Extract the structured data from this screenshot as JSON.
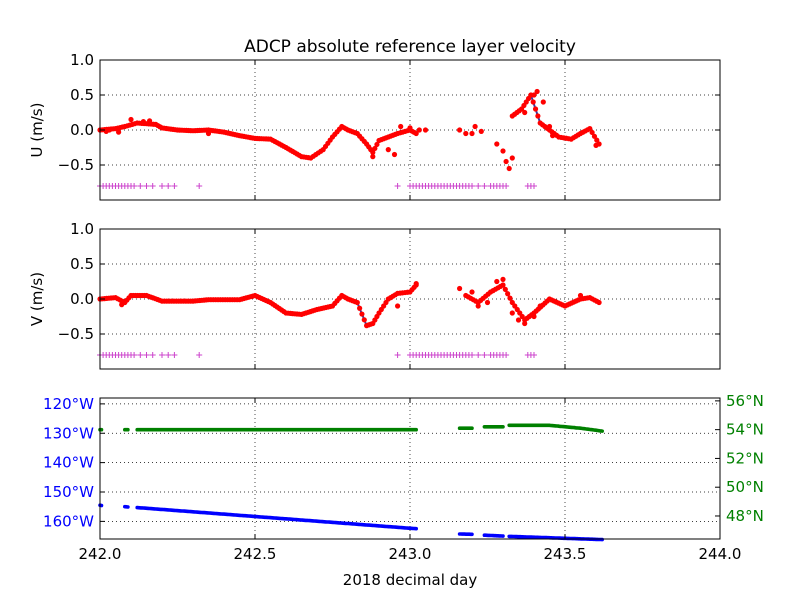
{
  "chart_data": [
    {
      "type": "scatter",
      "title": "ADCP absolute reference layer velocity",
      "ylabel": "U (m/s)",
      "xlim": [
        242.0,
        244.0
      ],
      "ylim": [
        -1.0,
        1.0
      ],
      "xticks": [
        242.0,
        242.5,
        243.0,
        243.5,
        244.0
      ],
      "yticks": [
        -0.5,
        0.0,
        0.5,
        1.0
      ],
      "ytick_labels": [
        "−0.5",
        "0.0",
        "0.5",
        "1.0"
      ],
      "grid": true,
      "colors": {
        "points": "#ff0000",
        "line": "#3a3aa0",
        "flags": "#cc44cc"
      },
      "flag_y": -0.8,
      "curve": [
        [
          242.0,
          0.0
        ],
        [
          242.05,
          0.02
        ],
        [
          242.08,
          0.05
        ],
        [
          242.12,
          0.1
        ],
        [
          242.18,
          0.08
        ],
        [
          242.2,
          0.03
        ],
        [
          242.25,
          0.0
        ],
        [
          242.3,
          -0.01
        ],
        [
          242.35,
          0.0
        ],
        [
          242.4,
          -0.03
        ],
        [
          242.45,
          -0.08
        ],
        [
          242.5,
          -0.12
        ],
        [
          242.55,
          -0.13
        ],
        [
          242.6,
          -0.25
        ],
        [
          242.65,
          -0.38
        ],
        [
          242.68,
          -0.4
        ],
        [
          242.72,
          -0.28
        ],
        [
          242.75,
          -0.1
        ],
        [
          242.78,
          0.05
        ],
        [
          242.8,
          0.0
        ],
        [
          242.83,
          -0.05
        ],
        [
          242.86,
          -0.2
        ],
        [
          242.88,
          -0.32
        ],
        [
          242.9,
          -0.15
        ],
        [
          242.93,
          -0.1
        ],
        [
          242.96,
          -0.05
        ],
        [
          243.0,
          0.0
        ],
        [
          243.02,
          -0.05
        ]
      ],
      "curve2": [
        [
          243.33,
          0.2
        ],
        [
          243.36,
          0.3
        ],
        [
          243.39,
          0.5
        ],
        [
          243.42,
          0.1
        ],
        [
          243.45,
          0.0
        ],
        [
          243.48,
          -0.1
        ],
        [
          243.52,
          -0.13
        ],
        [
          243.55,
          -0.05
        ],
        [
          243.58,
          0.02
        ],
        [
          243.61,
          -0.2
        ]
      ],
      "extra_points": [
        [
          242.02,
          -0.02
        ],
        [
          242.03,
          0.0
        ],
        [
          242.06,
          -0.03
        ],
        [
          242.1,
          0.15
        ],
        [
          242.14,
          0.12
        ],
        [
          242.16,
          0.13
        ],
        [
          242.35,
          -0.05
        ],
        [
          242.88,
          -0.38
        ],
        [
          242.93,
          -0.28
        ],
        [
          242.95,
          -0.35
        ],
        [
          242.97,
          0.05
        ],
        [
          243.0,
          0.03
        ],
        [
          243.03,
          0.0
        ],
        [
          243.05,
          0.0
        ],
        [
          243.16,
          0.0
        ],
        [
          243.18,
          -0.05
        ],
        [
          243.2,
          -0.05
        ],
        [
          243.21,
          0.05
        ],
        [
          243.23,
          -0.02
        ],
        [
          243.28,
          -0.2
        ],
        [
          243.3,
          -0.3
        ],
        [
          243.31,
          -0.45
        ],
        [
          243.32,
          -0.55
        ],
        [
          243.33,
          -0.4
        ],
        [
          243.37,
          0.25
        ],
        [
          243.4,
          0.5
        ],
        [
          243.41,
          0.55
        ],
        [
          243.43,
          0.4
        ],
        [
          243.45,
          0.05
        ],
        [
          243.46,
          -0.08
        ],
        [
          243.6,
          -0.22
        ]
      ],
      "flags": [
        242.0,
        242.01,
        242.02,
        242.03,
        242.04,
        242.05,
        242.06,
        242.07,
        242.08,
        242.09,
        242.1,
        242.11,
        242.13,
        242.15,
        242.17,
        242.2,
        242.22,
        242.24,
        242.32,
        242.96,
        243.0,
        243.01,
        243.02,
        243.03,
        243.04,
        243.05,
        243.06,
        243.07,
        243.08,
        243.09,
        243.1,
        243.11,
        243.12,
        243.13,
        243.14,
        243.15,
        243.16,
        243.17,
        243.18,
        243.19,
        243.2,
        243.22,
        243.24,
        243.26,
        243.27,
        243.28,
        243.29,
        243.3,
        243.31,
        243.38,
        243.39,
        243.4
      ]
    },
    {
      "type": "scatter",
      "ylabel": "V (m/s)",
      "xlim": [
        242.0,
        244.0
      ],
      "ylim": [
        -1.0,
        1.0
      ],
      "xticks": [
        242.0,
        242.5,
        243.0,
        243.5,
        244.0
      ],
      "yticks": [
        -0.5,
        0.0,
        0.5,
        1.0
      ],
      "ytick_labels": [
        "−0.5",
        "0.0",
        "0.5",
        "1.0"
      ],
      "grid": true,
      "colors": {
        "points": "#ff0000",
        "line": "#3a3aa0",
        "flags": "#cc44cc"
      },
      "flag_y": -0.8,
      "curve": [
        [
          242.0,
          0.0
        ],
        [
          242.05,
          0.02
        ],
        [
          242.08,
          -0.05
        ],
        [
          242.1,
          0.05
        ],
        [
          242.15,
          0.05
        ],
        [
          242.2,
          -0.03
        ],
        [
          242.3,
          -0.03
        ],
        [
          242.35,
          -0.01
        ],
        [
          242.45,
          -0.01
        ],
        [
          242.5,
          0.05
        ],
        [
          242.55,
          -0.05
        ],
        [
          242.6,
          -0.2
        ],
        [
          242.65,
          -0.22
        ],
        [
          242.7,
          -0.15
        ],
        [
          242.75,
          -0.1
        ],
        [
          242.78,
          0.05
        ],
        [
          242.8,
          0.0
        ],
        [
          242.83,
          -0.05
        ],
        [
          242.86,
          -0.38
        ],
        [
          242.88,
          -0.35
        ],
        [
          242.9,
          -0.2
        ],
        [
          242.93,
          0.0
        ],
        [
          242.96,
          0.08
        ],
        [
          243.0,
          0.1
        ],
        [
          243.02,
          0.2
        ]
      ],
      "curve2": [
        [
          243.18,
          0.05
        ],
        [
          243.22,
          -0.05
        ],
        [
          243.26,
          0.1
        ],
        [
          243.3,
          0.2
        ],
        [
          243.33,
          -0.05
        ],
        [
          243.37,
          -0.3
        ],
        [
          243.4,
          -0.2
        ],
        [
          243.45,
          0.0
        ],
        [
          243.5,
          -0.1
        ],
        [
          243.55,
          0.0
        ],
        [
          243.58,
          0.02
        ],
        [
          243.61,
          -0.05
        ]
      ],
      "extra_points": [
        [
          242.07,
          -0.08
        ],
        [
          242.96,
          -0.1
        ],
        [
          243.02,
          0.22
        ],
        [
          243.16,
          0.15
        ],
        [
          243.2,
          0.1
        ],
        [
          243.22,
          -0.1
        ],
        [
          243.25,
          -0.05
        ],
        [
          243.28,
          0.25
        ],
        [
          243.3,
          0.28
        ],
        [
          243.33,
          -0.2
        ],
        [
          243.35,
          -0.3
        ],
        [
          243.37,
          -0.35
        ],
        [
          243.4,
          -0.25
        ],
        [
          243.42,
          -0.1
        ],
        [
          243.55,
          0.05
        ]
      ],
      "flags": [
        242.0,
        242.01,
        242.02,
        242.03,
        242.04,
        242.05,
        242.06,
        242.07,
        242.08,
        242.09,
        242.1,
        242.11,
        242.13,
        242.15,
        242.17,
        242.2,
        242.22,
        242.24,
        242.32,
        242.96,
        243.0,
        243.01,
        243.02,
        243.03,
        243.04,
        243.05,
        243.06,
        243.07,
        243.08,
        243.09,
        243.1,
        243.11,
        243.12,
        243.13,
        243.14,
        243.15,
        243.16,
        243.17,
        243.18,
        243.19,
        243.2,
        243.22,
        243.24,
        243.26,
        243.27,
        243.28,
        243.29,
        243.3,
        243.31,
        243.38,
        243.39,
        243.4
      ]
    },
    {
      "type": "scatter",
      "xlabel": "2018 decimal day",
      "xlim": [
        242.0,
        244.0
      ],
      "xticks": [
        242.0,
        242.5,
        243.0,
        243.5,
        244.0
      ],
      "xtick_labels": [
        "242.0",
        "242.5",
        "243.0",
        "243.5",
        "244.0"
      ],
      "grid": true,
      "left_axis": {
        "quantity": "longitude",
        "ylim": [
          -166,
          -118
        ],
        "ticks": [
          -120,
          -130,
          -140,
          -150,
          -160
        ],
        "tick_labels": [
          "120°W",
          "130°W",
          "140°W",
          "150°W",
          "160°W"
        ],
        "color": "#0000ff"
      },
      "right_axis": {
        "quantity": "latitude",
        "ylim": [
          46.4,
          56.2
        ],
        "ticks": [
          56,
          54,
          52,
          50,
          48
        ],
        "tick_labels": [
          "56°N",
          "54°N",
          "52°N",
          "50°N",
          "48°N"
        ],
        "color": "#008000"
      },
      "longitude_segments": [
        [
          [
            242.0,
            -154.5
          ],
          [
            242.005,
            -154.6
          ]
        ],
        [
          [
            242.08,
            -155.0
          ],
          [
            242.09,
            -155.1
          ]
        ],
        [
          [
            242.12,
            -155.3
          ],
          [
            243.02,
            -162.5
          ]
        ],
        [
          [
            243.16,
            -164.3
          ],
          [
            243.2,
            -164.4
          ]
        ],
        [
          [
            243.24,
            -164.7
          ],
          [
            243.3,
            -165.0
          ]
        ],
        [
          [
            243.32,
            -165.1
          ],
          [
            243.62,
            -166.2
          ]
        ]
      ],
      "latitude_segments": [
        [
          [
            242.0,
            54.0
          ],
          [
            242.005,
            54.0
          ]
        ],
        [
          [
            242.08,
            54.0
          ],
          [
            242.09,
            54.0
          ]
        ],
        [
          [
            242.12,
            54.0
          ],
          [
            243.02,
            54.0
          ]
        ],
        [
          [
            243.16,
            54.1
          ],
          [
            243.2,
            54.1
          ]
        ],
        [
          [
            243.24,
            54.2
          ],
          [
            243.3,
            54.2
          ]
        ],
        [
          [
            243.32,
            54.3
          ],
          [
            243.45,
            54.3
          ],
          [
            243.55,
            54.1
          ],
          [
            243.62,
            53.9
          ]
        ]
      ]
    }
  ]
}
